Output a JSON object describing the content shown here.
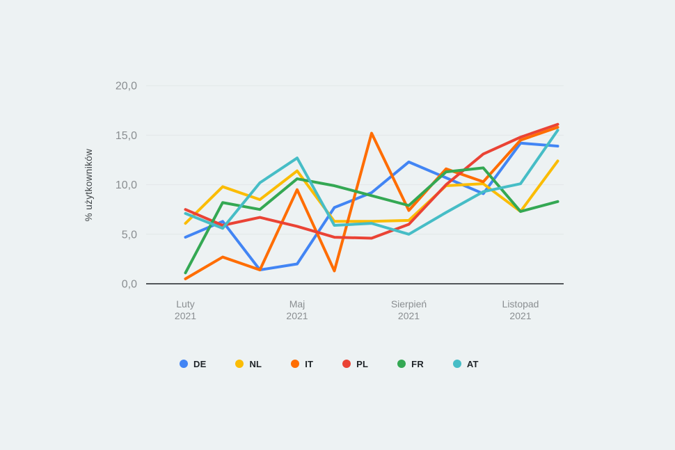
{
  "app": {
    "background_color": "#EDF2F3",
    "axis_line_color": "#53575A",
    "gridline_color": "#E2E7E8",
    "tick_text_color": "#8A8E91",
    "axis_title_color": "#3F4447"
  },
  "chart_data": {
    "type": "line",
    "title": "",
    "xlabel": "",
    "ylabel": "% użytkowników",
    "ylim": [
      0,
      20
    ],
    "grid": true,
    "legend_position": "bottom",
    "yticks": [
      {
        "value": 0,
        "label": "0,0"
      },
      {
        "value": 5,
        "label": "5,0"
      },
      {
        "value": 10,
        "label": "10,0"
      },
      {
        "value": 15,
        "label": "15,0"
      },
      {
        "value": 20,
        "label": "20,0"
      }
    ],
    "x_point_count": 11,
    "x_labels": [
      {
        "index": 0,
        "line1": "Luty",
        "line2": "2021"
      },
      {
        "index": 3,
        "line1": "Maj",
        "line2": "2021"
      },
      {
        "index": 6,
        "line1": "Sierpień",
        "line2": "2021"
      },
      {
        "index": 9,
        "line1": "Listopad",
        "line2": "2021"
      }
    ],
    "series": [
      {
        "name": "DE",
        "color": "#4285F4",
        "values": [
          4.7,
          6.3,
          1.4,
          2.0,
          7.7,
          9.2,
          12.3,
          10.7,
          9.1,
          14.2,
          13.9
        ]
      },
      {
        "name": "NL",
        "color": "#FBBC04",
        "values": [
          6.1,
          9.8,
          8.5,
          11.4,
          6.3,
          6.3,
          6.4,
          9.9,
          10.1,
          7.3,
          12.4
        ]
      },
      {
        "name": "IT",
        "color": "#FF6D01",
        "values": [
          0.5,
          2.7,
          1.4,
          9.5,
          1.3,
          15.2,
          7.4,
          11.6,
          10.3,
          14.5,
          15.8
        ]
      },
      {
        "name": "PL",
        "color": "#EA4335",
        "values": [
          7.5,
          5.9,
          6.7,
          5.8,
          4.7,
          4.6,
          6.0,
          10.0,
          13.1,
          14.8,
          16.1
        ]
      },
      {
        "name": "FR",
        "color": "#34A853",
        "values": [
          1.1,
          8.2,
          7.5,
          10.6,
          9.9,
          8.9,
          7.9,
          11.3,
          11.7,
          7.3,
          8.3
        ]
      },
      {
        "name": "AT",
        "color": "#46BDC6",
        "values": [
          7.1,
          5.6,
          10.2,
          12.7,
          5.9,
          6.1,
          5.0,
          7.2,
          9.3,
          10.1,
          15.5
        ]
      }
    ]
  }
}
